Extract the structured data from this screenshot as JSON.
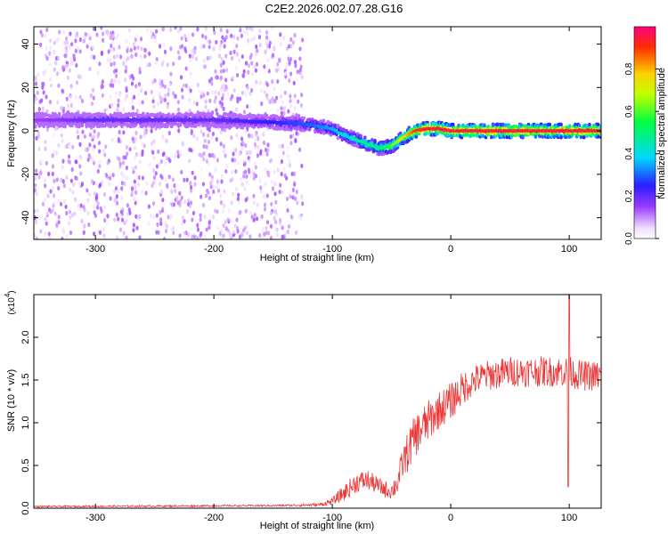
{
  "figure": {
    "title": "C2E2.2026.002.07.28.G16"
  },
  "chart_data": [
    {
      "type": "heatmap",
      "xlabel": "Height of straight line (km)",
      "ylabel": "Frequency (Hz)",
      "xlim": [
        -352,
        127
      ],
      "ylim": [
        -50,
        48
      ],
      "xticks": [
        -300,
        -200,
        -100,
        0,
        100
      ],
      "yticks": [
        -40,
        -20,
        0,
        20,
        40
      ],
      "colorbar": {
        "label": "Normalized spectral amplitude",
        "ticks": [
          0.0,
          0.2,
          0.4,
          0.6,
          0.8
        ],
        "range": [
          0,
          1
        ],
        "colormap": "rainbow (violet → blue → cyan → green → yellow → red)"
      },
      "ridge": {
        "description": "frequency of peak amplitude vs height",
        "x": [
          -350,
          -300,
          -250,
          -200,
          -150,
          -120,
          -100,
          -90,
          -80,
          -70,
          -60,
          -50,
          -40,
          -30,
          -20,
          -10,
          0,
          50,
          100,
          127
        ],
        "y": [
          5,
          5,
          5,
          5,
          4,
          3,
          1,
          -2,
          -4,
          -6,
          -8,
          -7,
          -3,
          0,
          1,
          1,
          0,
          0,
          0,
          0
        ],
        "amplitude": [
          0.15,
          0.2,
          0.2,
          0.2,
          0.25,
          0.3,
          0.35,
          0.4,
          0.45,
          0.5,
          0.5,
          0.6,
          0.75,
          0.9,
          0.95,
          0.95,
          0.95,
          0.95,
          0.95,
          0.95
        ]
      },
      "noise_region": {
        "x_range": [
          -352,
          -125
        ],
        "y_range": [
          -50,
          48
        ],
        "amplitude": 0.1
      }
    },
    {
      "type": "line",
      "xlabel": "Height of straight line (km)",
      "ylabel": "SNR (10 * v/v)",
      "y_scale_label": "(x10",
      "y_scale_exponent": "4",
      "xlim": [
        -352,
        127
      ],
      "ylim": [
        0,
        2.5
      ],
      "xticks": [
        -300,
        -200,
        -100,
        0,
        100
      ],
      "yticks": [
        0.0,
        0.5,
        1.0,
        1.5,
        2.0
      ],
      "series_color": "#ee3333",
      "envelope": {
        "x": [
          -352,
          -150,
          -110,
          -100,
          -90,
          -80,
          -70,
          -60,
          -55,
          -50,
          -45,
          -40,
          -35,
          -30,
          -20,
          -10,
          0,
          10,
          20,
          30,
          50,
          70,
          90,
          100,
          110,
          127
        ],
        "mean": [
          0.02,
          0.03,
          0.04,
          0.08,
          0.18,
          0.3,
          0.33,
          0.25,
          0.22,
          0.2,
          0.3,
          0.55,
          0.7,
          0.85,
          1.0,
          1.15,
          1.25,
          1.4,
          1.5,
          1.55,
          1.6,
          1.6,
          1.6,
          1.6,
          1.55,
          1.55
        ],
        "spread": [
          0.01,
          0.01,
          0.02,
          0.04,
          0.1,
          0.12,
          0.12,
          0.1,
          0.1,
          0.1,
          0.15,
          0.2,
          0.25,
          0.25,
          0.25,
          0.22,
          0.22,
          0.2,
          0.18,
          0.18,
          0.18,
          0.18,
          0.18,
          0.18,
          0.18,
          0.18
        ]
      },
      "features": [
        {
          "x": 100,
          "y": 2.5,
          "kind": "spike"
        },
        {
          "x": 99,
          "y": 0.25,
          "kind": "dip"
        }
      ]
    }
  ]
}
